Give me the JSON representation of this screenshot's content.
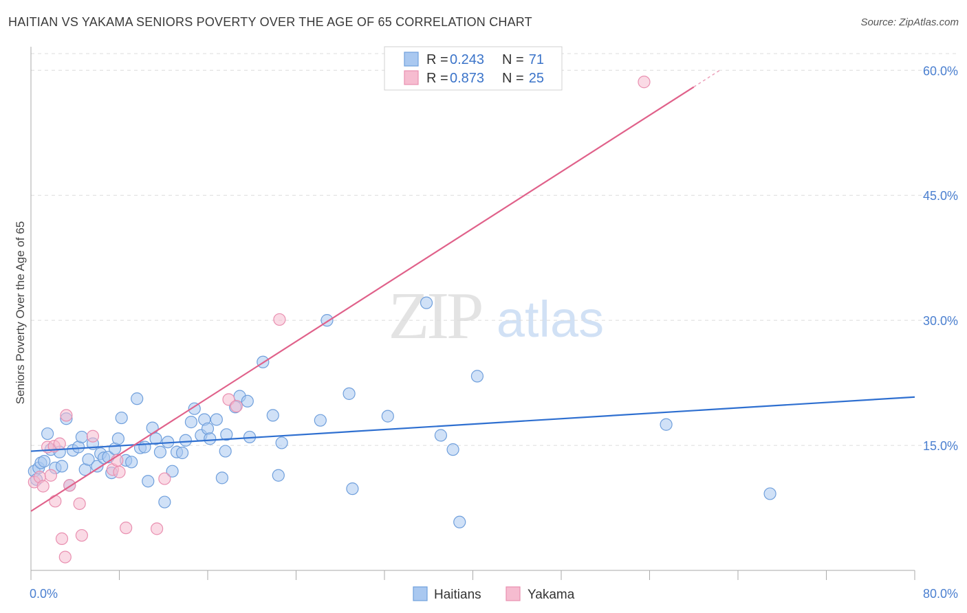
{
  "header": {
    "title": "HAITIAN VS YAKAMA SENIORS POVERTY OVER THE AGE OF 65 CORRELATION CHART",
    "source": "Source: ZipAtlas.com"
  },
  "watermark": {
    "zip": "ZIP",
    "atlas": "atlas"
  },
  "colors": {
    "haitians_fill": "#a9c8f0",
    "haitians_stroke": "#6f9fdc",
    "haitians_line": "#2e6fd0",
    "yakama_fill": "#f6bcd0",
    "yakama_stroke": "#e98fb0",
    "yakama_line": "#e0618a",
    "tick_label": "#4a7fd0",
    "grid": "#dcdcdc"
  },
  "chart_data": {
    "type": "scatter",
    "title": "HAITIAN VS YAKAMA SENIORS POVERTY OVER THE AGE OF 65 CORRELATION CHART",
    "xlabel": "",
    "ylabel": "Seniors Poverty Over the Age of 65",
    "xlim": [
      0,
      80
    ],
    "ylim": [
      0,
      62
    ],
    "x_tick_labels": [
      "0.0%",
      "80.0%"
    ],
    "y_ticks": [
      15,
      30,
      45,
      60
    ],
    "y_tick_labels": [
      "15.0%",
      "30.0%",
      "45.0%",
      "60.0%"
    ],
    "grid": true,
    "legend_top": [
      {
        "series": "Haitians",
        "r_label": "R =",
        "r_value": "0.243",
        "n_label": "N =",
        "n_value": "71"
      },
      {
        "series": "Yakama",
        "r_label": "R =",
        "r_value": "0.873",
        "n_label": "N =",
        "n_value": "25"
      }
    ],
    "legend_bottom": [
      "Haitians",
      "Yakama"
    ],
    "series": [
      {
        "name": "Haitians",
        "trend": {
          "x0": 0,
          "y0": 14.3,
          "x1": 80,
          "y1": 20.8
        },
        "points": [
          [
            0.3,
            11.9
          ],
          [
            0.5,
            10.9
          ],
          [
            0.7,
            12.3
          ],
          [
            0.9,
            12.9
          ],
          [
            1.2,
            13.1
          ],
          [
            1.5,
            16.4
          ],
          [
            1.8,
            14.5
          ],
          [
            2.2,
            12.3
          ],
          [
            2.6,
            14.2
          ],
          [
            2.8,
            12.5
          ],
          [
            3.2,
            18.2
          ],
          [
            3.5,
            10.2
          ],
          [
            3.8,
            14.4
          ],
          [
            4.3,
            14.8
          ],
          [
            4.6,
            16.0
          ],
          [
            4.9,
            12.1
          ],
          [
            5.2,
            13.3
          ],
          [
            5.6,
            15.2
          ],
          [
            6.0,
            12.5
          ],
          [
            6.3,
            14.0
          ],
          [
            6.6,
            13.5
          ],
          [
            7.0,
            13.6
          ],
          [
            7.3,
            11.7
          ],
          [
            7.6,
            14.6
          ],
          [
            7.9,
            15.8
          ],
          [
            8.2,
            18.3
          ],
          [
            8.6,
            13.2
          ],
          [
            9.1,
            13.0
          ],
          [
            9.6,
            20.6
          ],
          [
            9.9,
            14.7
          ],
          [
            10.3,
            14.8
          ],
          [
            10.6,
            10.7
          ],
          [
            11.0,
            17.1
          ],
          [
            11.3,
            15.8
          ],
          [
            11.7,
            14.2
          ],
          [
            12.1,
            8.2
          ],
          [
            12.4,
            15.4
          ],
          [
            12.8,
            11.9
          ],
          [
            13.2,
            14.2
          ],
          [
            13.7,
            14.1
          ],
          [
            14.0,
            15.6
          ],
          [
            14.5,
            17.8
          ],
          [
            14.8,
            19.4
          ],
          [
            15.4,
            16.2
          ],
          [
            15.7,
            18.1
          ],
          [
            16.0,
            17.0
          ],
          [
            16.2,
            15.8
          ],
          [
            16.8,
            18.1
          ],
          [
            17.3,
            11.1
          ],
          [
            17.6,
            14.3
          ],
          [
            17.7,
            16.3
          ],
          [
            18.5,
            19.6
          ],
          [
            18.9,
            20.9
          ],
          [
            19.6,
            20.3
          ],
          [
            19.8,
            16.0
          ],
          [
            21.0,
            25.0
          ],
          [
            21.9,
            18.6
          ],
          [
            22.4,
            11.4
          ],
          [
            22.7,
            15.3
          ],
          [
            26.2,
            18.0
          ],
          [
            26.8,
            30.0
          ],
          [
            28.8,
            21.2
          ],
          [
            29.1,
            9.8
          ],
          [
            32.3,
            18.5
          ],
          [
            35.8,
            32.1
          ],
          [
            37.1,
            16.2
          ],
          [
            38.2,
            14.5
          ],
          [
            38.8,
            5.8
          ],
          [
            40.4,
            23.3
          ],
          [
            57.5,
            17.5
          ],
          [
            66.9,
            9.2
          ]
        ]
      },
      {
        "name": "Yakama",
        "trend": {
          "x0": 0,
          "y0": 7.1,
          "x1": 60,
          "y1": 58.0
        },
        "points": [
          [
            0.3,
            10.6
          ],
          [
            0.8,
            11.2
          ],
          [
            1.1,
            10.1
          ],
          [
            1.5,
            14.8
          ],
          [
            1.8,
            11.4
          ],
          [
            2.1,
            14.9
          ],
          [
            2.2,
            8.3
          ],
          [
            2.6,
            15.2
          ],
          [
            2.8,
            3.8
          ],
          [
            3.1,
            1.6
          ],
          [
            3.2,
            18.6
          ],
          [
            3.5,
            10.2
          ],
          [
            4.4,
            8.0
          ],
          [
            4.6,
            4.2
          ],
          [
            5.6,
            16.1
          ],
          [
            7.4,
            12.1
          ],
          [
            7.8,
            13.2
          ],
          [
            8.0,
            11.8
          ],
          [
            8.6,
            5.1
          ],
          [
            11.4,
            5.0
          ],
          [
            12.1,
            11.0
          ],
          [
            17.9,
            20.5
          ],
          [
            18.6,
            19.7
          ],
          [
            22.5,
            30.1
          ],
          [
            55.5,
            58.6
          ]
        ]
      }
    ]
  }
}
